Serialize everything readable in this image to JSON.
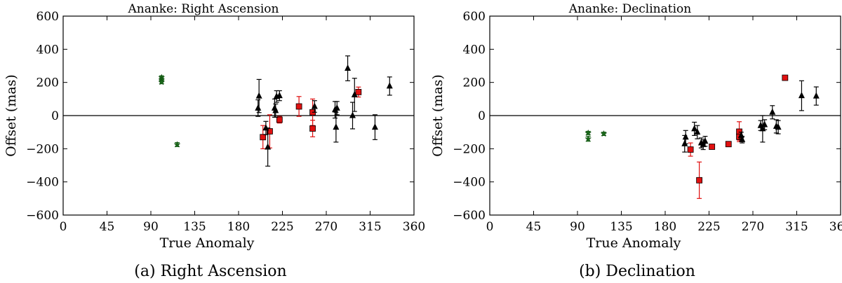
{
  "chart_data": [
    {
      "type": "scatter",
      "title": "Ananke: Right Ascension",
      "xlabel": "True Anomaly",
      "ylabel": "Offset (mas)",
      "xlim": [
        0,
        360
      ],
      "ylim": [
        -600,
        600
      ],
      "xticks": [
        "0",
        "45",
        "90",
        "135",
        "180",
        "225",
        "270",
        "315",
        "360"
      ],
      "yticks": [
        "600",
        "400",
        "200",
        "0",
        "−200",
        "−400",
        "−600"
      ],
      "caption": "(a)  Right Ascension",
      "series": [
        {
          "name": "green",
          "marker": "star",
          "color": "#1a6b1a",
          "points": [
            [
              101,
              230,
              10
            ],
            [
              101,
              215,
              10
            ],
            [
              101,
              202,
              10
            ],
            [
              117,
              -175,
              12
            ]
          ]
        },
        {
          "name": "red",
          "marker": "square",
          "color": "#e01010",
          "points": [
            [
              205,
              -130,
              70
            ],
            [
              212,
              -95,
              100
            ],
            [
              222,
              -25,
              20
            ],
            [
              242,
              55,
              60
            ],
            [
              256,
              20,
              80
            ],
            [
              256,
              -78,
              50
            ],
            [
              303,
              142,
              30
            ]
          ]
        },
        {
          "name": "black",
          "marker": "triangle",
          "color": "#000000",
          "points": [
            [
              200,
              45,
              50
            ],
            [
              201,
              118,
              100
            ],
            [
              208,
              -75,
              40
            ],
            [
              210,
              -190,
              115
            ],
            [
              217,
              45,
              55
            ],
            [
              218,
              30,
              40
            ],
            [
              219,
              115,
              35
            ],
            [
              222,
              120,
              30
            ],
            [
              258,
              55,
              35
            ],
            [
              279,
              35,
              50
            ],
            [
              280,
              -70,
              90
            ],
            [
              281,
              45,
              40
            ],
            [
              292,
              285,
              75
            ],
            [
              297,
              0,
              80
            ],
            [
              299,
              125,
              100
            ],
            [
              320,
              -70,
              75
            ],
            [
              335,
              178,
              55
            ]
          ]
        }
      ]
    },
    {
      "type": "scatter",
      "title": "Ananke: Declination",
      "xlabel": "True Anomaly",
      "ylabel": "Offset (mas)",
      "xlim": [
        0,
        360
      ],
      "ylim": [
        -600,
        600
      ],
      "xticks": [
        "0",
        "45",
        "90",
        "135",
        "180",
        "225",
        "270",
        "315",
        "360"
      ],
      "yticks": [
        "600",
        "400",
        "200",
        "0",
        "−200",
        "−400",
        "−600"
      ],
      "caption": "(b)  Declination",
      "series": [
        {
          "name": "green",
          "marker": "star",
          "color": "#1a6b1a",
          "points": [
            [
              101,
              -105,
              10
            ],
            [
              101,
              -140,
              15
            ],
            [
              117,
              -110,
              10
            ]
          ]
        },
        {
          "name": "red",
          "marker": "square",
          "color": "#e01010",
          "points": [
            [
              206,
              -205,
              40
            ],
            [
              215,
              -390,
              110
            ],
            [
              228,
              -188,
              10
            ],
            [
              245,
              -172,
              10
            ],
            [
              256,
              -97,
              60
            ],
            [
              256,
              -128,
              20
            ],
            [
              303,
              228,
              10
            ]
          ]
        },
        {
          "name": "black",
          "marker": "triangle",
          "color": "#000000",
          "points": [
            [
              200,
              -170,
              50
            ],
            [
              201,
              -130,
              40
            ],
            [
              210,
              -80,
              40
            ],
            [
              213,
              -100,
              40
            ],
            [
              217,
              -165,
              30
            ],
            [
              219,
              -175,
              30
            ],
            [
              221,
              -155,
              30
            ],
            [
              258,
              -120,
              20
            ],
            [
              259,
              -145,
              20
            ],
            [
              278,
              -60,
              30
            ],
            [
              280,
              -80,
              80
            ],
            [
              282,
              -55,
              30
            ],
            [
              290,
              20,
              40
            ],
            [
              294,
              -65,
              40
            ],
            [
              296,
              -70,
              40
            ],
            [
              320,
              120,
              90
            ],
            [
              335,
              118,
              55
            ]
          ]
        }
      ]
    }
  ]
}
